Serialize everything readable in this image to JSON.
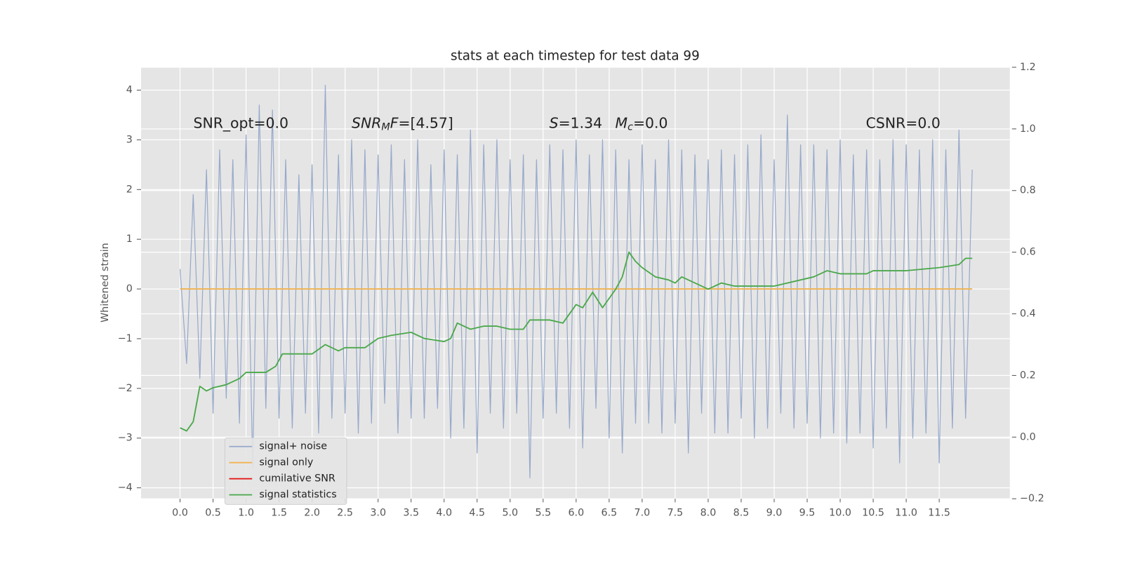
{
  "chart_data": {
    "type": "line",
    "title": "stats at each timestep for test data 99",
    "ylabel": "Whitened strain",
    "xlim": [
      -0.59,
      12.57
    ],
    "ylim": [
      -4.22,
      4.46
    ],
    "y2lim": [
      -0.2,
      1.2
    ],
    "xticks": [
      {
        "value": 0,
        "label": "0.0"
      },
      {
        "value": 0.5,
        "label": "0.5"
      },
      {
        "value": 1,
        "label": "1.0"
      },
      {
        "value": 1.5,
        "label": "1.5"
      },
      {
        "value": 2,
        "label": "2.0"
      },
      {
        "value": 2.5,
        "label": "2.5"
      },
      {
        "value": 3,
        "label": "3.0"
      },
      {
        "value": 3.5,
        "label": "3.5"
      },
      {
        "value": 4,
        "label": "4.0"
      },
      {
        "value": 4.5,
        "label": "4.5"
      },
      {
        "value": 5,
        "label": "5.0"
      },
      {
        "value": 5.5,
        "label": "5.5"
      },
      {
        "value": 6,
        "label": "6.0"
      },
      {
        "value": 6.5,
        "label": "6.5"
      },
      {
        "value": 7,
        "label": "7.0"
      },
      {
        "value": 7.5,
        "label": "7.5"
      },
      {
        "value": 8,
        "label": "8.0"
      },
      {
        "value": 8.5,
        "label": "8.5"
      },
      {
        "value": 9,
        "label": "9.0"
      },
      {
        "value": 9.5,
        "label": "9.5"
      },
      {
        "value": 10,
        "label": "10.0"
      },
      {
        "value": 10.5,
        "label": "10.5"
      },
      {
        "value": 11,
        "label": "11.0"
      },
      {
        "value": 11.5,
        "label": "11.5"
      }
    ],
    "yticks": [
      {
        "value": -4,
        "label": "−4"
      },
      {
        "value": -3,
        "label": "−3"
      },
      {
        "value": -2,
        "label": "−2"
      },
      {
        "value": -1,
        "label": "−1"
      },
      0,
      1,
      2,
      3,
      4
    ],
    "y2ticks": [
      {
        "value": -0.2,
        "label": "−0.2"
      },
      {
        "value": 0,
        "label": "0.0"
      },
      0.2,
      0.4,
      0.6,
      0.8,
      {
        "value": 1,
        "label": "1.0"
      },
      1.2
    ],
    "grid": true,
    "legend": "lower left",
    "series": [
      {
        "name": "signal+ noise",
        "color": "#97a9cb",
        "axis": "y",
        "x": [
          0,
          0.1,
          0.2,
          0.3,
          0.4,
          0.5,
          0.6,
          0.7,
          0.8,
          0.9,
          1,
          1.1,
          1.2,
          1.3,
          1.4,
          1.5,
          1.6,
          1.7,
          1.8,
          1.9,
          2,
          2.1,
          2.2,
          2.3,
          2.4,
          2.5,
          2.6,
          2.7,
          2.8,
          2.9,
          3,
          3.1,
          3.2,
          3.3,
          3.4,
          3.5,
          3.6,
          3.7,
          3.8,
          3.9,
          4,
          4.1,
          4.2,
          4.3,
          4.4,
          4.5,
          4.6,
          4.7,
          4.8,
          4.9,
          5,
          5.1,
          5.2,
          5.3,
          5.4,
          5.5,
          5.6,
          5.7,
          5.8,
          5.9,
          6,
          6.1,
          6.2,
          6.3,
          6.4,
          6.5,
          6.6,
          6.7,
          6.8,
          6.9,
          7,
          7.1,
          7.2,
          7.3,
          7.4,
          7.5,
          7.6,
          7.7,
          7.8,
          7.9,
          8,
          8.1,
          8.2,
          8.3,
          8.4,
          8.5,
          8.6,
          8.7,
          8.8,
          8.9,
          9,
          9.1,
          9.2,
          9.3,
          9.4,
          9.5,
          9.6,
          9.7,
          9.8,
          9.9,
          10,
          10.1,
          10.2,
          10.3,
          10.4,
          10.5,
          10.6,
          10.7,
          10.8,
          10.9,
          11,
          11.1,
          11.2,
          11.3,
          11.4,
          11.5,
          11.6,
          11.7,
          11.8,
          11.9,
          12
        ],
        "values": [
          0.4,
          -1.5,
          1.9,
          -1.8,
          2.4,
          -2.5,
          2.8,
          -2.2,
          2.6,
          -2.7,
          3.1,
          -3.6,
          3.7,
          -2.4,
          3.6,
          -2.6,
          2.6,
          -2.8,
          2.3,
          -2.5,
          2.5,
          -2.9,
          4.1,
          -2.6,
          2.7,
          -2.5,
          3.0,
          -2.9,
          2.8,
          -2.7,
          2.7,
          -2.3,
          2.9,
          -2.9,
          2.6,
          -2.6,
          3.0,
          -2.6,
          2.5,
          -2.4,
          2.8,
          -3.0,
          2.7,
          -2.8,
          3.2,
          -3.3,
          2.9,
          -2.5,
          3.0,
          -2.8,
          2.6,
          -2.5,
          2.7,
          -3.8,
          2.6,
          -2.6,
          2.9,
          -2.5,
          2.8,
          -2.8,
          3.0,
          -3.2,
          2.7,
          -2.4,
          3.0,
          -3.0,
          2.8,
          -3.3,
          2.6,
          -2.7,
          2.9,
          -2.7,
          2.6,
          -2.9,
          3.0,
          -2.7,
          2.8,
          -3.3,
          2.7,
          -2.5,
          2.6,
          -2.9,
          2.8,
          -2.9,
          2.7,
          -2.6,
          2.9,
          -3.0,
          3.1,
          -2.8,
          2.6,
          -2.5,
          3.5,
          -2.8,
          2.9,
          -2.7,
          2.9,
          -3.0,
          2.8,
          -2.9,
          3.0,
          -3.1,
          2.7,
          -2.9,
          2.8,
          -3.2,
          2.6,
          -2.8,
          3.0,
          -3.5,
          2.9,
          -3.0,
          2.8,
          -2.9,
          3.0,
          -3.5,
          2.8,
          -2.8,
          3.2,
          -2.6,
          2.4
        ]
      },
      {
        "name": "signal only",
        "color": "#f0b450",
        "axis": "y",
        "x": [
          0,
          12
        ],
        "values": [
          0,
          0
        ]
      },
      {
        "name": "cumilative SNR",
        "color": "#e41a1c",
        "axis": "y",
        "x": [],
        "values": []
      },
      {
        "name": "signal statistics",
        "color": "#4aa84a",
        "axis": "y2",
        "x": [
          0,
          0.1,
          0.2,
          0.3,
          0.4,
          0.5,
          0.7,
          0.9,
          1.0,
          1.3,
          1.45,
          1.55,
          2.0,
          2.2,
          2.4,
          2.5,
          2.8,
          3.0,
          3.2,
          3.5,
          3.7,
          4.0,
          4.1,
          4.2,
          4.4,
          4.6,
          4.8,
          5.0,
          5.2,
          5.3,
          5.6,
          5.8,
          6.0,
          6.1,
          6.25,
          6.4,
          6.6,
          6.7,
          6.8,
          6.9,
          7.0,
          7.2,
          7.4,
          7.5,
          7.6,
          7.7,
          8.0,
          8.2,
          8.4,
          8.8,
          9.0,
          9.4,
          9.6,
          9.8,
          10.0,
          10.4,
          10.5,
          11.0,
          11.5,
          11.8,
          11.9,
          12.0
        ],
        "values": [
          0.03,
          0.02,
          0.05,
          0.165,
          0.15,
          0.16,
          0.17,
          0.19,
          0.21,
          0.21,
          0.23,
          0.27,
          0.27,
          0.3,
          0.28,
          0.29,
          0.29,
          0.32,
          0.33,
          0.34,
          0.32,
          0.31,
          0.32,
          0.37,
          0.35,
          0.36,
          0.36,
          0.35,
          0.35,
          0.38,
          0.38,
          0.37,
          0.43,
          0.42,
          0.47,
          0.42,
          0.48,
          0.52,
          0.6,
          0.57,
          0.55,
          0.52,
          0.51,
          0.5,
          0.52,
          0.51,
          0.48,
          0.5,
          0.49,
          0.49,
          0.49,
          0.51,
          0.52,
          0.54,
          0.53,
          0.53,
          0.54,
          0.54,
          0.55,
          0.56,
          0.58,
          0.58
        ]
      }
    ],
    "annotations": [
      {
        "parts": [
          {
            "text": "SNR_opt=0.0"
          }
        ]
      },
      {
        "parts": [
          {
            "text": "SNR",
            "style": "italic"
          },
          {
            "text": "M",
            "style": "sub"
          },
          {
            "text": "F",
            "style": "italic"
          },
          {
            "text": "=[4.57]"
          }
        ]
      },
      {
        "parts": [
          {
            "text": "S",
            "style": "italic"
          },
          {
            "text": "=1.34"
          }
        ]
      },
      {
        "parts": [
          {
            "text": "M",
            "style": "italic"
          },
          {
            "text": "c",
            "style": "sub"
          },
          {
            "text": "=0.0"
          }
        ]
      },
      {
        "parts": [
          {
            "text": "CSNR=0.0"
          }
        ]
      }
    ]
  }
}
